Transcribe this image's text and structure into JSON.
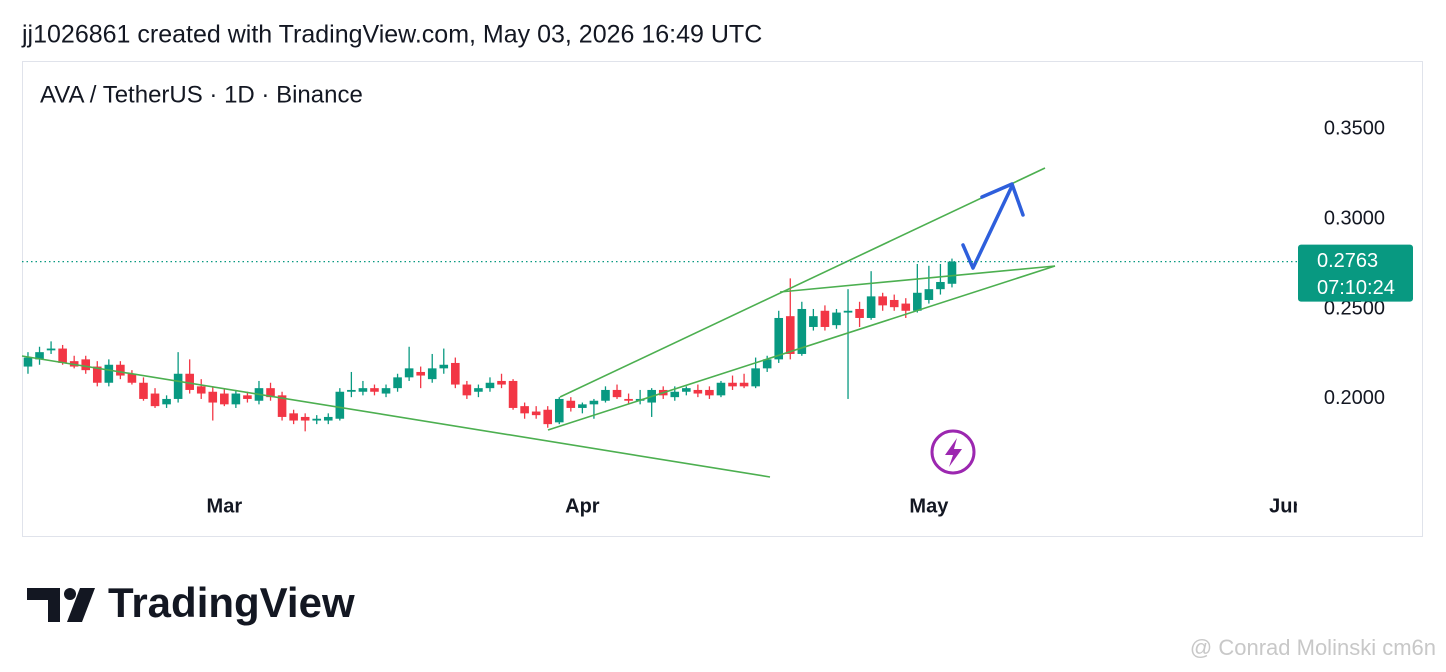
{
  "header": "jj1026861 created with TradingView.com, May 03, 2026 16:49 UTC",
  "chart_data": {
    "type": "candlestick",
    "title": "AVA / TetherUS · 1D · Binance",
    "categories": [
      null,
      null,
      null,
      null,
      null,
      null,
      null,
      null,
      null,
      null,
      null,
      null,
      null,
      null,
      null,
      null,
      null,
      "Mar",
      null,
      null,
      null,
      null,
      null,
      null,
      null,
      null,
      null,
      null,
      null,
      null,
      null,
      null,
      null,
      null,
      null,
      null,
      null,
      null,
      null,
      null,
      null,
      null,
      null,
      null,
      null,
      null,
      null,
      null,
      "Apr",
      null,
      null,
      null,
      null,
      null,
      null,
      null,
      null,
      null,
      null,
      null,
      null,
      null,
      null,
      null,
      null,
      null,
      null,
      null,
      null,
      null,
      null,
      null,
      null,
      null,
      null,
      null,
      null,
      null,
      "May",
      null,
      null,
      null,
      null,
      null,
      null,
      null,
      null,
      null,
      null,
      null,
      null,
      null,
      null,
      null,
      null,
      null,
      null,
      null,
      null,
      null,
      null,
      null,
      null,
      null,
      null,
      null,
      null,
      null,
      null,
      "Jun"
    ],
    "open": [
      0.218,
      0.222,
      0.227,
      0.228,
      0.221,
      0.222,
      0.218,
      0.209,
      0.219,
      0.214,
      0.209,
      0.203,
      0.197,
      0.2,
      0.214,
      0.207,
      0.204,
      0.203,
      0.197,
      0.202,
      0.199,
      0.206,
      0.202,
      0.192,
      0.19,
      0.188,
      0.188,
      0.189,
      0.204,
      0.204,
      0.206,
      0.203,
      0.206,
      0.212,
      0.215,
      0.211,
      0.217,
      0.22,
      0.208,
      0.204,
      0.206,
      0.21,
      0.21,
      0.196,
      0.193,
      0.194,
      0.187,
      0.199,
      0.195,
      0.197,
      0.199,
      0.205,
      0.2,
      0.199,
      0.198,
      0.205,
      0.201,
      0.204,
      0.205,
      0.205,
      0.202,
      0.209,
      0.209,
      0.207,
      0.217,
      0.222,
      0.246,
      0.225,
      0.24,
      0.249,
      0.241,
      0.248,
      0.25,
      0.245,
      0.257,
      0.255,
      0.253,
      0.249,
      0.255,
      0.261,
      0.264,
      null,
      null,
      null,
      null,
      null,
      null,
      null,
      null,
      null,
      null,
      null,
      null,
      null,
      null,
      null,
      null,
      null,
      null,
      null,
      null,
      null,
      null,
      null,
      null,
      null,
      null,
      null,
      null,
      null
    ],
    "high": [
      0.226,
      0.229,
      0.232,
      0.23,
      0.224,
      0.224,
      0.221,
      0.222,
      0.221,
      0.216,
      0.212,
      0.206,
      0.202,
      0.226,
      0.222,
      0.211,
      0.207,
      0.206,
      0.205,
      0.204,
      0.21,
      0.209,
      0.204,
      0.194,
      0.192,
      0.191,
      0.192,
      0.206,
      0.215,
      0.21,
      0.208,
      0.208,
      0.214,
      0.229,
      0.218,
      0.225,
      0.228,
      0.223,
      0.21,
      0.208,
      0.212,
      0.214,
      0.211,
      0.198,
      0.196,
      0.196,
      0.201,
      0.201,
      0.198,
      0.2,
      0.207,
      0.208,
      0.203,
      0.205,
      0.206,
      0.207,
      0.207,
      0.207,
      0.208,
      0.207,
      0.21,
      0.213,
      0.214,
      0.223,
      0.224,
      0.249,
      0.267,
      0.254,
      0.25,
      0.252,
      0.25,
      0.261,
      0.254,
      0.271,
      0.259,
      0.258,
      0.256,
      0.275,
      0.274,
      0.275,
      0.278,
      null,
      null,
      null,
      null,
      null,
      null,
      null,
      null,
      null,
      null,
      null,
      null,
      null,
      null,
      null,
      null,
      null,
      null,
      null,
      null,
      null,
      null,
      null,
      null,
      null,
      null,
      null,
      null,
      null
    ],
    "low": [
      0.214,
      0.219,
      0.225,
      0.219,
      0.217,
      0.214,
      0.207,
      0.207,
      0.211,
      0.208,
      0.199,
      0.195,
      0.195,
      0.198,
      0.203,
      0.2,
      0.188,
      0.196,
      0.195,
      0.198,
      0.197,
      0.199,
      0.188,
      0.186,
      0.182,
      0.186,
      0.186,
      0.188,
      0.201,
      0.202,
      0.202,
      0.201,
      0.204,
      0.21,
      0.206,
      0.209,
      0.214,
      0.206,
      0.2,
      0.201,
      0.204,
      0.206,
      0.194,
      0.189,
      0.189,
      0.184,
      0.186,
      0.193,
      0.192,
      0.189,
      0.198,
      0.2,
      0.197,
      0.197,
      0.19,
      0.2,
      0.199,
      0.202,
      0.201,
      0.2,
      0.201,
      0.205,
      0.206,
      0.206,
      0.215,
      0.22,
      0.222,
      0.224,
      0.238,
      0.238,
      0.239,
      0.2,
      0.24,
      0.244,
      0.249,
      0.249,
      0.245,
      0.248,
      0.253,
      0.258,
      0.262,
      null,
      null,
      null,
      null,
      null,
      null,
      null,
      null,
      null,
      null,
      null,
      null,
      null,
      null,
      null,
      null,
      null,
      null,
      null,
      null,
      null,
      null,
      null,
      null,
      null,
      null,
      null,
      null,
      null
    ],
    "close": [
      0.223,
      0.226,
      0.228,
      0.22,
      0.218,
      0.216,
      0.209,
      0.219,
      0.213,
      0.209,
      0.2,
      0.196,
      0.2,
      0.214,
      0.205,
      0.203,
      0.198,
      0.197,
      0.203,
      0.2,
      0.206,
      0.201,
      0.19,
      0.188,
      0.188,
      0.189,
      0.19,
      0.204,
      0.205,
      0.206,
      0.204,
      0.206,
      0.212,
      0.217,
      0.213,
      0.217,
      0.219,
      0.208,
      0.202,
      0.206,
      0.209,
      0.208,
      0.195,
      0.192,
      0.191,
      0.186,
      0.2,
      0.195,
      0.197,
      0.199,
      0.205,
      0.201,
      0.199,
      0.2,
      0.205,
      0.202,
      0.204,
      0.206,
      0.203,
      0.202,
      0.209,
      0.207,
      0.207,
      0.217,
      0.222,
      0.245,
      0.225,
      0.25,
      0.246,
      0.24,
      0.248,
      0.249,
      0.245,
      0.257,
      0.252,
      0.251,
      0.249,
      0.259,
      0.261,
      0.265,
      0.2763,
      null,
      null,
      null,
      null,
      null,
      null,
      null,
      null,
      null,
      null,
      null,
      null,
      null,
      null,
      null,
      null,
      null,
      null,
      null,
      null,
      null,
      null,
      null,
      null,
      null,
      null,
      null,
      null,
      null
    ],
    "up_color": "#089981",
    "down_color": "#f23645",
    "ylim": [
      0.1494,
      0.3878
    ],
    "yticks": [
      {
        "value": 0.2,
        "label": "0.2000"
      },
      {
        "value": 0.25,
        "label": "0.2500"
      },
      {
        "value": 0.3,
        "label": "0.3000"
      },
      {
        "value": 0.35,
        "label": "0.3500"
      }
    ],
    "last_price": 0.2763,
    "countdown": "07:10:24"
  },
  "logo": "TradingView",
  "watermark": "@ Conrad Molinski cm6n"
}
